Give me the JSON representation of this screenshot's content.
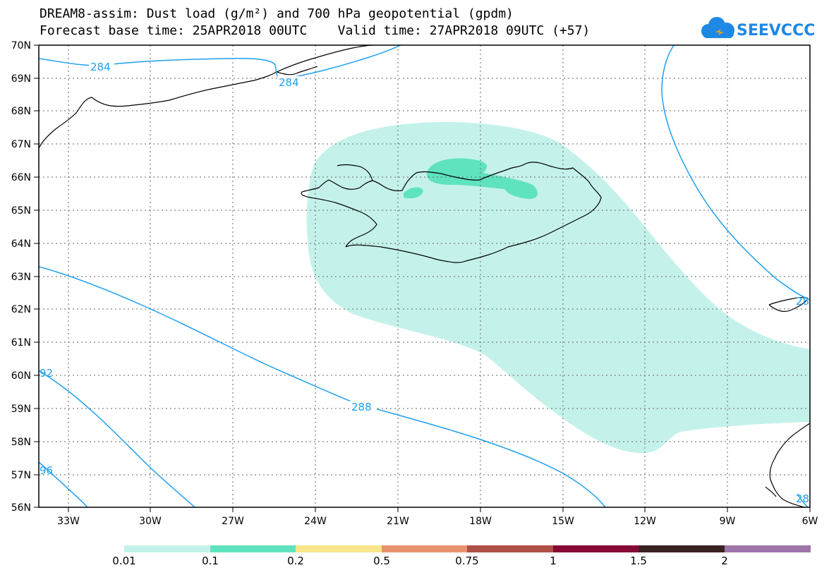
{
  "header": {
    "line1": "DREAM8-assim: Dust load (g/m²) and 700 hPa geopotential (gpdm)",
    "line2": "Forecast base time: 25APR2018 00UTC    Valid time: 27APR2018 09UTC (+57)",
    "logo_text": "SEEVCCC"
  },
  "axes": {
    "lat_labels": [
      "70N",
      "69N",
      "68N",
      "67N",
      "66N",
      "65N",
      "64N",
      "63N",
      "62N",
      "61N",
      "60N",
      "59N",
      "58N",
      "57N",
      "56N"
    ],
    "lon_labels": [
      "33W",
      "30W",
      "27W",
      "24W",
      "21W",
      "18W",
      "15W",
      "12W",
      "9W",
      "6W"
    ],
    "lat_range": [
      56,
      70
    ],
    "lon_range": [
      -34.5,
      -6
    ]
  },
  "contours": {
    "labels": [
      "284",
      "284",
      "288",
      "92",
      "96",
      "28",
      "28"
    ],
    "color": "#1ea0f0"
  },
  "colorbar": {
    "labels": [
      "0.01",
      "0.1",
      "0.2",
      "0.5",
      "0.75",
      "1",
      "1.5",
      "2"
    ],
    "colors": [
      "#c4f2ea",
      "#5fe3bf",
      "#f7e68a",
      "#e99270",
      "#b04f45",
      "#870a36",
      "#3a2222",
      "#9f74a8"
    ]
  },
  "colors": {
    "dust_low": "#c4f2ea",
    "dust_mid": "#5fe3bf",
    "coast": "#000000",
    "contour": "#1ea0f0",
    "logo_blue": "#1e88e5"
  }
}
